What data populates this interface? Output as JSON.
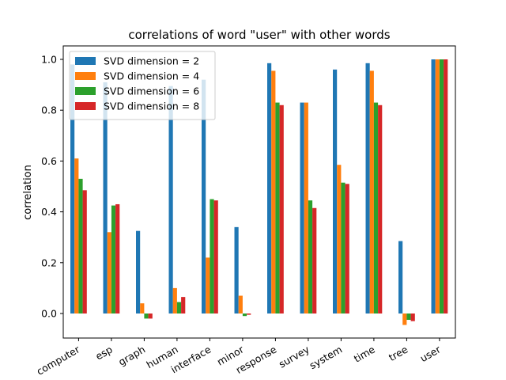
{
  "chart_data": {
    "type": "bar",
    "title": "correlations of word \"user\" with other words",
    "xlabel": "",
    "ylabel": "correlation",
    "categories": [
      "computer",
      "esp",
      "graph",
      "human",
      "interface",
      "minor",
      "response",
      "survey",
      "system",
      "time",
      "tree",
      "user"
    ],
    "yticks": [
      0.0,
      0.2,
      0.4,
      0.6,
      0.8,
      1.0
    ],
    "ytick_labels": [
      "0.0",
      "0.2",
      "0.4",
      "0.6",
      "0.8",
      "1.0"
    ],
    "ylim": [
      -0.095,
      1.05
    ],
    "grid": false,
    "legend_position": "top-left",
    "series": [
      {
        "name": "SVD dimension = 2",
        "color": "#1f77b4",
        "values": [
          0.98,
          0.91,
          0.325,
          0.895,
          0.92,
          0.34,
          0.985,
          0.83,
          0.96,
          0.985,
          0.285,
          1.0
        ]
      },
      {
        "name": "SVD dimension = 4",
        "color": "#ff7f0e",
        "values": [
          0.61,
          0.32,
          0.04,
          0.1,
          0.22,
          0.07,
          0.955,
          0.83,
          0.585,
          0.955,
          -0.045,
          1.0
        ]
      },
      {
        "name": "SVD dimension = 6",
        "color": "#2ca02c",
        "values": [
          0.53,
          0.425,
          -0.02,
          0.045,
          0.45,
          -0.01,
          0.83,
          0.445,
          0.515,
          0.83,
          -0.025,
          1.0
        ]
      },
      {
        "name": "SVD dimension = 8",
        "color": "#d62728",
        "values": [
          0.485,
          0.43,
          -0.02,
          0.065,
          0.445,
          -0.005,
          0.82,
          0.415,
          0.51,
          0.82,
          -0.03,
          1.0
        ]
      }
    ]
  }
}
